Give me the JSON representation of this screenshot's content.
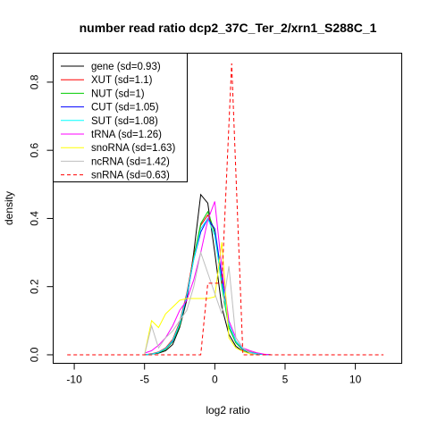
{
  "chart_data": {
    "type": "line",
    "title": "number read ratio dcp2_37C_Ter_2/xrn1_S288C_1",
    "xlabel": "log2 ratio",
    "ylabel": "density",
    "xlim": [
      -11.5,
      13.3
    ],
    "ylim": [
      -0.025,
      0.885
    ],
    "x_ticks": [
      -10,
      -5,
      0,
      5,
      10
    ],
    "y_ticks": [
      0.0,
      0.2,
      0.4,
      0.6,
      0.8
    ],
    "x_tick_labels": [
      "-10",
      "-5",
      "0",
      "5",
      "10"
    ],
    "y_tick_labels": [
      "0.0",
      "0.2",
      "0.4",
      "0.6",
      "0.8"
    ],
    "grid": false,
    "legend_position": "top-left",
    "series": [
      {
        "name": "gene (sd=0.93)",
        "color": "#000000",
        "dash": "solid",
        "x": [
          -5,
          -4.5,
          -4,
          -3.5,
          -3,
          -2.5,
          -2,
          -1.5,
          -1,
          -0.5,
          0,
          0.5,
          1,
          1.5,
          2,
          2.5,
          3,
          3.5,
          4
        ],
        "y": [
          0,
          0.002,
          0.005,
          0.012,
          0.03,
          0.08,
          0.16,
          0.3,
          0.47,
          0.445,
          0.3,
          0.14,
          0.06,
          0.025,
          0.01,
          0.005,
          0.002,
          0.001,
          0
        ]
      },
      {
        "name": "XUT (sd=1.1)",
        "color": "#ff0000",
        "dash": "solid",
        "x": [
          -5,
          -4.5,
          -4,
          -3.5,
          -3,
          -2.5,
          -2,
          -1.5,
          -1,
          -0.5,
          0,
          0.5,
          1,
          1.5,
          2,
          2.5,
          3,
          3.5,
          4
        ],
        "y": [
          0,
          0.003,
          0.008,
          0.02,
          0.045,
          0.095,
          0.18,
          0.29,
          0.38,
          0.41,
          0.36,
          0.22,
          0.09,
          0.04,
          0.018,
          0.008,
          0.004,
          0.001,
          0
        ]
      },
      {
        "name": "NUT (sd=1)",
        "color": "#00cc00",
        "dash": "solid",
        "x": [
          -5,
          -4.5,
          -4,
          -3.5,
          -3,
          -2.5,
          -2,
          -1.5,
          -1,
          -0.5,
          0,
          0.5,
          1,
          1.5,
          2,
          2.5,
          3,
          3.5,
          4
        ],
        "y": [
          0,
          0.002,
          0.006,
          0.016,
          0.038,
          0.085,
          0.17,
          0.285,
          0.385,
          0.42,
          0.36,
          0.2,
          0.08,
          0.035,
          0.014,
          0.006,
          0.003,
          0.001,
          0
        ]
      },
      {
        "name": "CUT (sd=1.05)",
        "color": "#0000ff",
        "dash": "solid",
        "x": [
          -5,
          -4.5,
          -4,
          -3.5,
          -3,
          -2.5,
          -2,
          -1.5,
          -1,
          -0.5,
          0,
          0.5,
          1,
          1.5,
          2,
          2.5,
          3,
          3.5,
          4
        ],
        "y": [
          0,
          0.002,
          0.007,
          0.018,
          0.04,
          0.09,
          0.17,
          0.28,
          0.36,
          0.4,
          0.37,
          0.23,
          0.09,
          0.04,
          0.016,
          0.007,
          0.003,
          0.001,
          0
        ]
      },
      {
        "name": "SUT (sd=1.08)",
        "color": "#00ffff",
        "dash": "solid",
        "x": [
          -5,
          -4.5,
          -4,
          -3.5,
          -3,
          -2.5,
          -2,
          -1.5,
          -1,
          -0.5,
          0,
          0.5,
          1,
          1.5,
          2,
          2.5,
          3,
          3.5,
          4
        ],
        "y": [
          0,
          0.002,
          0.007,
          0.018,
          0.042,
          0.09,
          0.175,
          0.28,
          0.37,
          0.4,
          0.35,
          0.21,
          0.09,
          0.04,
          0.017,
          0.007,
          0.003,
          0.001,
          0
        ]
      },
      {
        "name": "tRNA (sd=1.26)",
        "color": "#ff00ff",
        "dash": "solid",
        "x": [
          -5,
          -4.5,
          -4,
          -3.5,
          -3,
          -2.5,
          -2,
          -1.5,
          -1,
          -0.5,
          0,
          0.5,
          1,
          1.5,
          2,
          2.5,
          3,
          3.5,
          4
        ],
        "y": [
          0.005,
          0.012,
          0.028,
          0.05,
          0.085,
          0.13,
          0.16,
          0.22,
          0.3,
          0.395,
          0.45,
          0.255,
          0.1,
          0.05,
          0.02,
          0.012,
          0.006,
          0.002,
          0
        ]
      },
      {
        "name": "snoRNA (sd=1.63)",
        "color": "#ffff00",
        "dash": "solid",
        "x": [
          -5,
          -4.5,
          -4,
          -3.5,
          -3,
          -2.5,
          -2,
          -1.5,
          -1,
          -0.5,
          0,
          0.5,
          1,
          1.5,
          2,
          2.5,
          3
        ],
        "y": [
          0,
          0.1,
          0.08,
          0.12,
          0.14,
          0.16,
          0.165,
          0.165,
          0.165,
          0.165,
          0.17,
          0.33,
          0.05,
          0.02,
          0.01,
          0.003,
          0
        ]
      },
      {
        "name": "ncRNA (sd=1.42)",
        "color": "#bebebe",
        "dash": "solid",
        "x": [
          -5,
          -4.5,
          -4,
          -3.5,
          -3,
          -2.5,
          -2,
          -1.5,
          -1,
          -0.5,
          0,
          0.5,
          1,
          1.5,
          2,
          2.5,
          3
        ],
        "y": [
          0,
          0.085,
          0.02,
          0.05,
          0.07,
          0.1,
          0.13,
          0.2,
          0.3,
          0.24,
          0.18,
          0.12,
          0.26,
          0.05,
          0.02,
          0.005,
          0
        ]
      },
      {
        "name": "snRNA (sd=0.63)",
        "color": "#ff0000",
        "dash": "dashed",
        "x": [
          -10.5,
          -1,
          -0.5,
          0,
          0.5,
          1.2,
          2,
          2.5,
          12
        ],
        "y": [
          0,
          0,
          0.21,
          0.21,
          0.21,
          0.855,
          0,
          0,
          0
        ]
      }
    ]
  }
}
